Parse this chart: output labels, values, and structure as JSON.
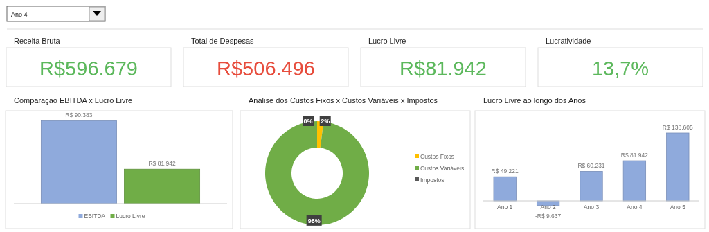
{
  "chart_data": [
    {
      "type": "other",
      "annotations": [
        "Ano 4"
      ],
      "categories": [
        "Receita Bruta",
        "Total de Despesas",
        "Lucro Livre",
        "Lucratividade"
      ],
      "value_labels": [
        "R$596.679",
        "R$506.496",
        "R$81.942",
        "13,7%"
      ],
      "colors": [
        "#5cb85c",
        "#e74c3c",
        "#5cb85c",
        "#5cb85c"
      ]
    },
    {
      "type": "bar",
      "title": "Comparação EBITDA x Lucro Livre",
      "categories": [
        null
      ],
      "ylim": [
        76000,
        92000
      ],
      "tick_labels": false,
      "legend": "bottom",
      "series": [
        {
          "name": "EBITDA",
          "color": "#8faadc",
          "values": [
            90383
          ],
          "value_labels": [
            "R$ 90.383"
          ]
        },
        {
          "name": "Lucro Livre",
          "color": "#70ad47",
          "values": [
            81942
          ],
          "value_labels": [
            "R$ 81.942"
          ]
        }
      ]
    },
    {
      "type": "donut",
      "title": "Análise dos Custos Fixos x Custos Variáveis x Impostos",
      "categories": [
        "Custos Fixos",
        "Custos Variáveis",
        "Impostos"
      ],
      "values": [
        2,
        98,
        0
      ],
      "colors": [
        "#ffc000",
        "#70ad47",
        "#595959"
      ],
      "value_labels": [
        "2%",
        "98%",
        "0%"
      ],
      "legend": "right"
    },
    {
      "type": "bar",
      "title": "Lucro Livre ao longo dos Anos",
      "categories": [
        "Ano 1",
        "Ano 2",
        "Ano 3",
        "Ano 4",
        "Ano 5"
      ],
      "values": [
        49221,
        -9637,
        60231,
        81942,
        138605
      ],
      "value_labels": [
        "R$ 49.221",
        "-R$ 9.637",
        "R$ 60.231",
        "R$ 81.942",
        "R$ 138.605"
      ],
      "color": "#8faadc",
      "tick_labels": "x"
    }
  ]
}
